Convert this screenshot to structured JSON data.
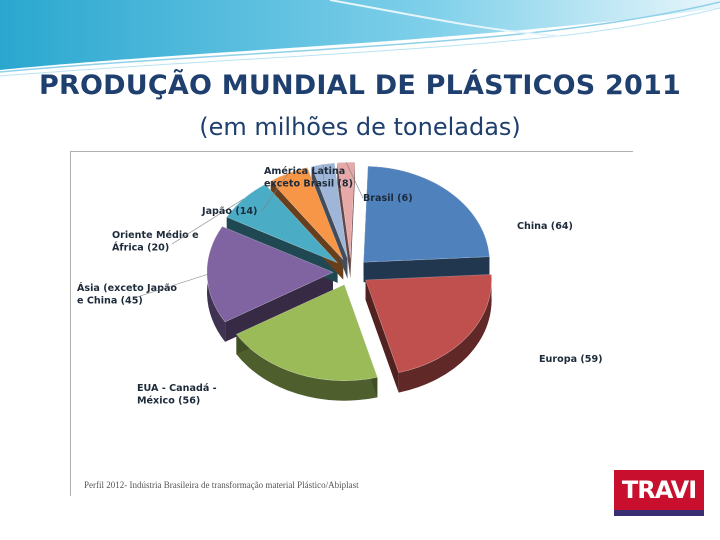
{
  "slide": {
    "title": "PRODUÇÃO MUNDIAL DE PLÁSTICOS  2011",
    "subtitle": "(em milhões de toneladas)",
    "source": "Perfil 2012- Indústria Brasileira de transformação material Plástico/Abiplast",
    "logo_text": "TRAVI"
  },
  "chart_data": {
    "type": "pie",
    "title": "",
    "categories": [
      "China",
      "Europa",
      "EUA - Canadá - México",
      "Ásia (exceto Japão e China)",
      "Oriente Médio e África",
      "Japão",
      "América Latina exceto Brasil",
      "Brasil"
    ],
    "values": [
      64,
      59,
      56,
      45,
      20,
      14,
      8,
      6
    ],
    "labels": [
      [
        "China (64)"
      ],
      [
        "Europa (59)"
      ],
      [
        "EUA - Canadá -",
        "México (56)"
      ],
      [
        "Ásia (exceto Japão",
        "e China  (45)"
      ],
      [
        "Oriente Médio e",
        "África (20)"
      ],
      [
        "Japão (14)"
      ],
      [
        "América Latina",
        "exceto Brasil (8)"
      ],
      [
        "Brasil (6)"
      ]
    ],
    "colors": [
      "#4f81bd",
      "#c0504d",
      "#9bbb59",
      "#8064a2",
      "#4bacc6",
      "#f79646",
      "#9fb6d8",
      "#e6a9a8"
    ],
    "exploded": true,
    "style": "3d"
  }
}
